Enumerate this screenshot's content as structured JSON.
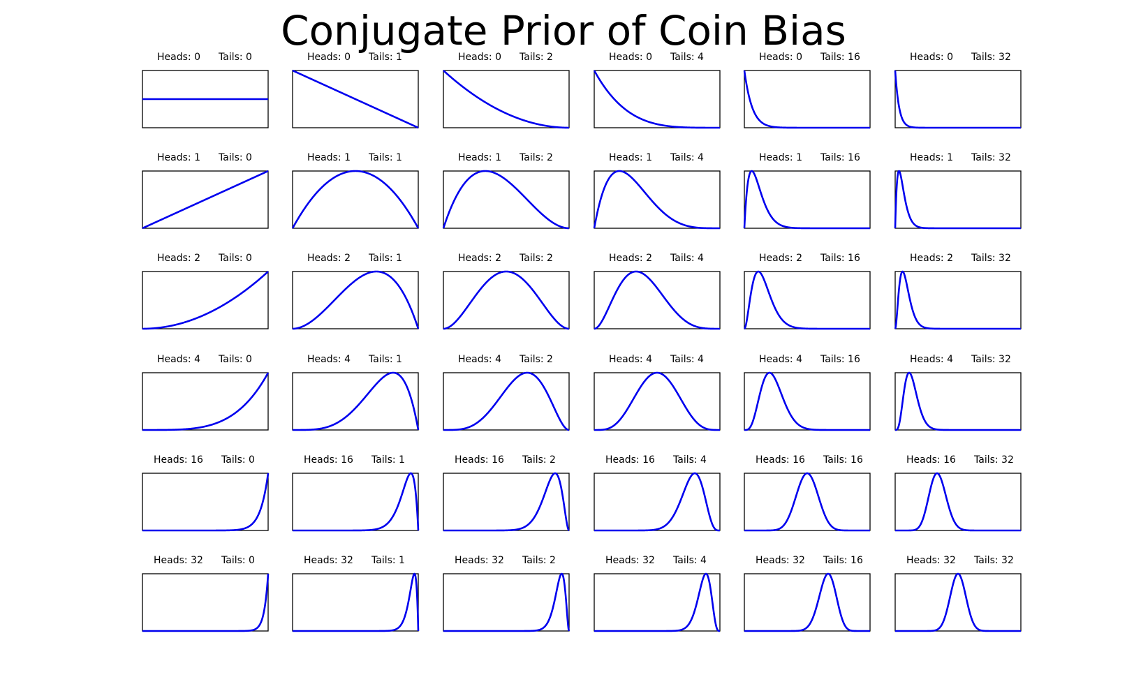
{
  "chart_data": {
    "type": "line",
    "title": "Conjugate Prior of Coin Bias",
    "heads_label": "Heads:",
    "tails_label": "Tails:",
    "rows_heads": [
      0,
      1,
      2,
      4,
      16,
      32
    ],
    "cols_tails": [
      0,
      1,
      2,
      4,
      16,
      32
    ],
    "x_range": [
      0,
      1
    ],
    "density": "beta(heads + 1, tails + 1)",
    "line_color": "#0000ee",
    "grid": false,
    "axis_ticks": false,
    "panels": [
      {
        "heads": 0,
        "tails": 0,
        "heads_text": "Heads: 0",
        "tails_text": "Tails: 0"
      },
      {
        "heads": 0,
        "tails": 1,
        "heads_text": "Heads: 0",
        "tails_text": "Tails: 1"
      },
      {
        "heads": 0,
        "tails": 2,
        "heads_text": "Heads: 0",
        "tails_text": "Tails: 2"
      },
      {
        "heads": 0,
        "tails": 4,
        "heads_text": "Heads: 0",
        "tails_text": "Tails: 4"
      },
      {
        "heads": 0,
        "tails": 16,
        "heads_text": "Heads: 0",
        "tails_text": "Tails: 16"
      },
      {
        "heads": 0,
        "tails": 32,
        "heads_text": "Heads: 0",
        "tails_text": "Tails: 32"
      },
      {
        "heads": 1,
        "tails": 0,
        "heads_text": "Heads: 1",
        "tails_text": "Tails: 0"
      },
      {
        "heads": 1,
        "tails": 1,
        "heads_text": "Heads: 1",
        "tails_text": "Tails: 1"
      },
      {
        "heads": 1,
        "tails": 2,
        "heads_text": "Heads: 1",
        "tails_text": "Tails: 2"
      },
      {
        "heads": 1,
        "tails": 4,
        "heads_text": "Heads: 1",
        "tails_text": "Tails: 4"
      },
      {
        "heads": 1,
        "tails": 16,
        "heads_text": "Heads: 1",
        "tails_text": "Tails: 16"
      },
      {
        "heads": 1,
        "tails": 32,
        "heads_text": "Heads: 1",
        "tails_text": "Tails: 32"
      },
      {
        "heads": 2,
        "tails": 0,
        "heads_text": "Heads: 2",
        "tails_text": "Tails: 0"
      },
      {
        "heads": 2,
        "tails": 1,
        "heads_text": "Heads: 2",
        "tails_text": "Tails: 1"
      },
      {
        "heads": 2,
        "tails": 2,
        "heads_text": "Heads: 2",
        "tails_text": "Tails: 2"
      },
      {
        "heads": 2,
        "tails": 4,
        "heads_text": "Heads: 2",
        "tails_text": "Tails: 4"
      },
      {
        "heads": 2,
        "tails": 16,
        "heads_text": "Heads: 2",
        "tails_text": "Tails: 16"
      },
      {
        "heads": 2,
        "tails": 32,
        "heads_text": "Heads: 2",
        "tails_text": "Tails: 32"
      },
      {
        "heads": 4,
        "tails": 0,
        "heads_text": "Heads: 4",
        "tails_text": "Tails: 0"
      },
      {
        "heads": 4,
        "tails": 1,
        "heads_text": "Heads: 4",
        "tails_text": "Tails: 1"
      },
      {
        "heads": 4,
        "tails": 2,
        "heads_text": "Heads: 4",
        "tails_text": "Tails: 2"
      },
      {
        "heads": 4,
        "tails": 4,
        "heads_text": "Heads: 4",
        "tails_text": "Tails: 4"
      },
      {
        "heads": 4,
        "tails": 16,
        "heads_text": "Heads: 4",
        "tails_text": "Tails: 16"
      },
      {
        "heads": 4,
        "tails": 32,
        "heads_text": "Heads: 4",
        "tails_text": "Tails: 32"
      },
      {
        "heads": 16,
        "tails": 0,
        "heads_text": "Heads: 16",
        "tails_text": "Tails: 0"
      },
      {
        "heads": 16,
        "tails": 1,
        "heads_text": "Heads: 16",
        "tails_text": "Tails: 1"
      },
      {
        "heads": 16,
        "tails": 2,
        "heads_text": "Heads: 16",
        "tails_text": "Tails: 2"
      },
      {
        "heads": 16,
        "tails": 4,
        "heads_text": "Heads: 16",
        "tails_text": "Tails: 4"
      },
      {
        "heads": 16,
        "tails": 16,
        "heads_text": "Heads: 16",
        "tails_text": "Tails: 16"
      },
      {
        "heads": 16,
        "tails": 32,
        "heads_text": "Heads: 16",
        "tails_text": "Tails: 32"
      },
      {
        "heads": 32,
        "tails": 0,
        "heads_text": "Heads: 32",
        "tails_text": "Tails: 0"
      },
      {
        "heads": 32,
        "tails": 1,
        "heads_text": "Heads: 32",
        "tails_text": "Tails: 1"
      },
      {
        "heads": 32,
        "tails": 2,
        "heads_text": "Heads: 32",
        "tails_text": "Tails: 2"
      },
      {
        "heads": 32,
        "tails": 4,
        "heads_text": "Heads: 32",
        "tails_text": "Tails: 4"
      },
      {
        "heads": 32,
        "tails": 16,
        "heads_text": "Heads: 32",
        "tails_text": "Tails: 16"
      },
      {
        "heads": 32,
        "tails": 32,
        "heads_text": "Heads: 32",
        "tails_text": "Tails: 32"
      }
    ]
  }
}
